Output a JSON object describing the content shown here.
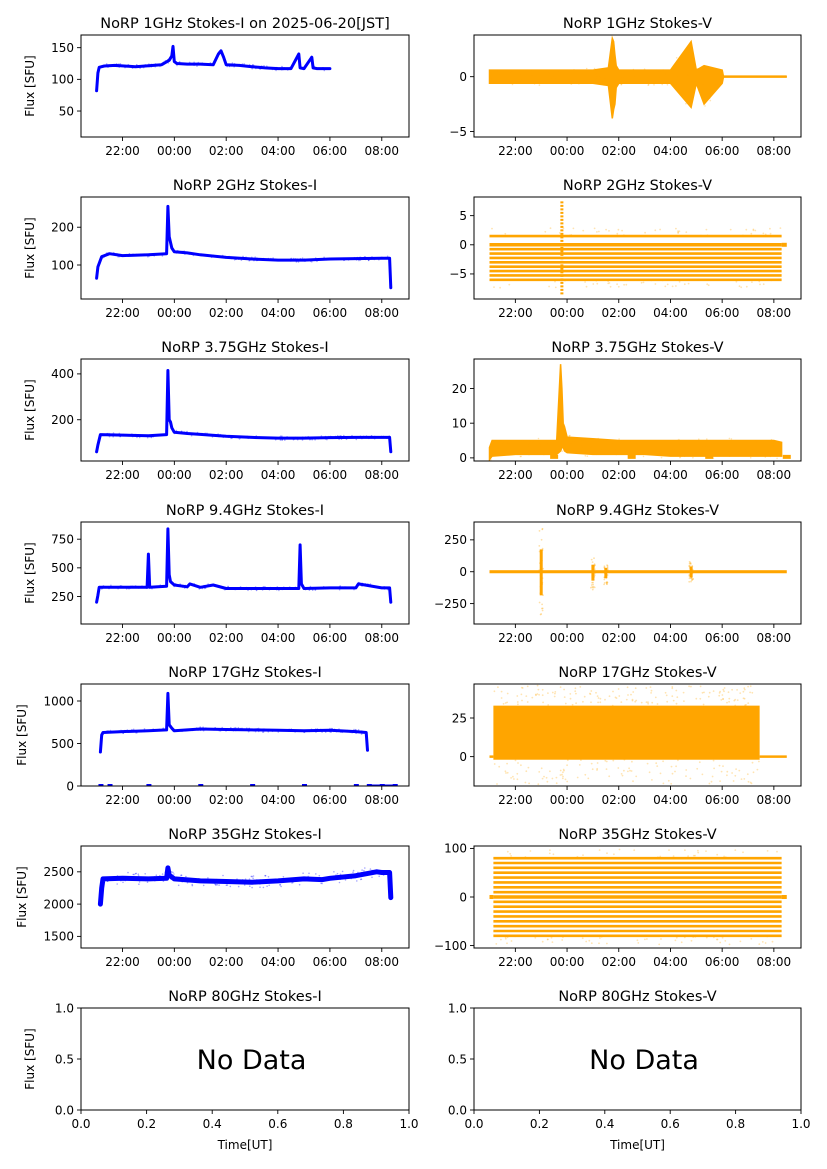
{
  "figure": {
    "date_label": "2025-06-20[JST]",
    "colors": {
      "stokes_i": "#0000ff",
      "stokes_v": "#ffa500",
      "frame": "#000000"
    }
  },
  "chart_data": [
    {
      "type": "scatter",
      "panel": "1GHz-I",
      "title": "NoRP 1GHz Stokes-I on 2025-06-20[JST]",
      "xlabel": "",
      "ylabel": "Flux [SFU]",
      "x_unit": "hours since 00:00 UT (negative = previous day)",
      "xlim": [
        -3.6,
        9.05
      ],
      "ylim": [
        9,
        170
      ],
      "xticks": [
        "22:00",
        "00:00",
        "02:00",
        "04:00",
        "06:00",
        "08:00"
      ],
      "yticks": [
        50,
        100,
        150
      ],
      "color": "#0000ff",
      "series": [
        {
          "name": "Stokes-I",
          "x": [
            -3.0,
            -2.95,
            -2.9,
            -2.7,
            -2.3,
            -1.5,
            -0.5,
            -0.2,
            -0.1,
            -0.05,
            0.0,
            0.1,
            0.5,
            1.0,
            1.5,
            1.7,
            1.8,
            1.9,
            2.0,
            2.5,
            3.0,
            3.5,
            4.0,
            4.5,
            4.8,
            4.85,
            5.0,
            5.3,
            5.35,
            5.5,
            6.0
          ],
          "y": [
            82,
            110,
            119,
            121,
            122,
            120,
            123,
            130,
            137,
            152,
            128,
            125,
            124,
            124,
            123,
            140,
            145,
            135,
            123,
            122,
            120,
            118,
            117,
            117,
            140,
            118,
            117,
            135,
            118,
            117,
            117
          ]
        }
      ]
    },
    {
      "type": "scatter",
      "panel": "1GHz-V",
      "title": "NoRP 1GHz Stokes-V",
      "xlabel": "",
      "ylabel": "",
      "xlim": [
        -3.6,
        9.05
      ],
      "ylim": [
        -5.5,
        3.8
      ],
      "xticks": [
        "22:00",
        "00:00",
        "02:00",
        "04:00",
        "06:00",
        "08:00"
      ],
      "yticks": [
        -5,
        0
      ],
      "color": "#ffa500",
      "series": [
        {
          "name": "Stokes-V",
          "x": [
            -3.0,
            -2.0,
            -1.0,
            0.0,
            1.0,
            1.6,
            1.75,
            1.8,
            1.85,
            1.9,
            2.0,
            3.0,
            4.0,
            4.8,
            5.0,
            5.3,
            6.0,
            6.05,
            7.0,
            8.0,
            8.5
          ],
          "y_band": [
            [
              -0.6,
              0.6
            ],
            [
              -0.6,
              0.6
            ],
            [
              -0.6,
              0.6
            ],
            [
              -0.6,
              0.6
            ],
            [
              -0.6,
              0.6
            ],
            [
              -0.8,
              0.8
            ],
            [
              -3.8,
              3.5
            ],
            [
              -3.0,
              3.2
            ],
            [
              -2.5,
              2.0
            ],
            [
              -1.0,
              1.0
            ],
            [
              -0.6,
              0.6
            ],
            [
              -0.6,
              0.6
            ],
            [
              -0.6,
              0.6
            ],
            [
              -2.8,
              3.2
            ],
            [
              -0.6,
              0.6
            ],
            [
              -2.5,
              1.0
            ],
            [
              -0.6,
              0.6
            ],
            [
              0,
              0
            ],
            [
              0,
              0
            ],
            [
              0,
              0
            ],
            [
              0,
              0
            ]
          ]
        }
      ]
    },
    {
      "type": "scatter",
      "panel": "2GHz-I",
      "title": "NoRP 2GHz Stokes-I",
      "xlabel": "",
      "ylabel": "Flux [SFU]",
      "xlim": [
        -3.6,
        9.05
      ],
      "ylim": [
        10,
        280
      ],
      "xticks": [
        "22:00",
        "00:00",
        "02:00",
        "04:00",
        "06:00",
        "08:00"
      ],
      "yticks": [
        100,
        200
      ],
      "color": "#0000ff",
      "series": [
        {
          "name": "Stokes-I",
          "x": [
            -3.0,
            -2.95,
            -2.8,
            -2.5,
            -2.0,
            -1.0,
            -0.3,
            -0.25,
            -0.2,
            -0.15,
            -0.1,
            0.0,
            0.5,
            1.0,
            2.0,
            3.0,
            4.0,
            5.0,
            6.0,
            7.0,
            8.0,
            8.3,
            8.35
          ],
          "y": [
            65,
            95,
            122,
            130,
            125,
            127,
            130,
            255,
            175,
            160,
            145,
            135,
            132,
            127,
            120,
            116,
            113,
            113,
            116,
            117,
            118,
            118,
            40
          ]
        }
      ]
    },
    {
      "type": "scatter",
      "panel": "2GHz-V",
      "title": "NoRP 2GHz Stokes-V",
      "xlabel": "",
      "ylabel": "",
      "xlim": [
        -3.6,
        9.05
      ],
      "ylim": [
        -9.3,
        8.2
      ],
      "xticks": [
        "22:00",
        "00:00",
        "02:00",
        "04:00",
        "06:00",
        "08:00"
      ],
      "yticks": [
        -5,
        0,
        5
      ],
      "color": "#ffa500",
      "series": [
        {
          "name": "Stokes-V",
          "quantized_levels": [
            1.5,
            0,
            -0.75,
            -1.5,
            -2.25,
            -3,
            -3.75,
            -4.5,
            -5.25,
            -6
          ],
          "x_range": [
            -3.0,
            8.3
          ],
          "spike": {
            "x": -0.2,
            "y_range": [
              -8.5,
              7.5
            ]
          },
          "tail": {
            "x_range": [
              8.3,
              8.5
            ],
            "y": 0
          }
        }
      ]
    },
    {
      "type": "scatter",
      "panel": "3.75GHz-I",
      "title": "NoRP 3.75GHz Stokes-I",
      "xlabel": "",
      "ylabel": "Flux [SFU]",
      "xlim": [
        -3.6,
        9.05
      ],
      "ylim": [
        20,
        465
      ],
      "xticks": [
        "22:00",
        "00:00",
        "02:00",
        "04:00",
        "06:00",
        "08:00"
      ],
      "yticks": [
        200,
        400
      ],
      "color": "#0000ff",
      "series": [
        {
          "name": "Stokes-I",
          "x": [
            -3.0,
            -2.95,
            -2.85,
            -2.0,
            -1.0,
            -0.3,
            -0.25,
            -0.2,
            -0.15,
            -0.1,
            0.0,
            0.5,
            1.0,
            2.0,
            3.0,
            4.0,
            5.0,
            6.0,
            7.0,
            8.0,
            8.3,
            8.35
          ],
          "y": [
            60,
            90,
            135,
            133,
            130,
            135,
            415,
            200,
            190,
            165,
            145,
            140,
            136,
            128,
            123,
            120,
            120,
            122,
            123,
            123,
            123,
            60
          ]
        }
      ]
    },
    {
      "type": "scatter",
      "panel": "3.75GHz-V",
      "title": "NoRP 3.75GHz Stokes-V",
      "xlabel": "",
      "ylabel": "",
      "xlim": [
        -3.6,
        9.05
      ],
      "ylim": [
        -0.9,
        28.5
      ],
      "xticks": [
        "22:00",
        "00:00",
        "02:00",
        "04:00",
        "06:00",
        "08:00"
      ],
      "yticks": [
        0,
        10,
        20
      ],
      "color": "#ffa500",
      "series": [
        {
          "name": "Stokes-V",
          "x": [
            -3.0,
            -2.9,
            -2.0,
            -1.0,
            -0.4,
            -0.25,
            -0.2,
            -0.15,
            -0.1,
            0.0,
            1.0,
            2.0,
            3.0,
            4.0,
            5.0,
            6.0,
            7.0,
            8.0,
            8.3
          ],
          "y_band": [
            [
              -0.5,
              3
            ],
            [
              0.5,
              5
            ],
            [
              1,
              5
            ],
            [
              1,
              5
            ],
            [
              1,
              5
            ],
            [
              2,
              27
            ],
            [
              3,
              20
            ],
            [
              3,
              10
            ],
            [
              2,
              9
            ],
            [
              1.5,
              6
            ],
            [
              1,
              5.5
            ],
            [
              1,
              5
            ],
            [
              1,
              5
            ],
            [
              0.5,
              5
            ],
            [
              0.5,
              5
            ],
            [
              0.5,
              5
            ],
            [
              0.5,
              5
            ],
            [
              0.5,
              5
            ],
            [
              0.5,
              4.5
            ]
          ],
          "zero_marks_x": [
            -0.5,
            2.5,
            5.5,
            8.5
          ]
        }
      ]
    },
    {
      "type": "scatter",
      "panel": "9.4GHz-I",
      "title": "NoRP 9.4GHz Stokes-I",
      "xlabel": "",
      "ylabel": "Flux [SFU]",
      "xlim": [
        -3.6,
        9.05
      ],
      "ylim": [
        10,
        900
      ],
      "xticks": [
        "22:00",
        "00:00",
        "02:00",
        "04:00",
        "06:00",
        "08:00"
      ],
      "yticks": [
        250,
        500,
        750
      ],
      "color": "#0000ff",
      "series": [
        {
          "name": "Stokes-I",
          "x": [
            -3.0,
            -2.95,
            -2.9,
            -2.0,
            -1.05,
            -1.0,
            -0.95,
            -0.3,
            -0.25,
            -0.2,
            -0.15,
            0.0,
            0.5,
            0.6,
            1.0,
            1.5,
            2.0,
            3.0,
            4.0,
            4.8,
            4.85,
            4.9,
            5.0,
            6.0,
            7.0,
            7.1,
            8.0,
            8.3,
            8.35
          ],
          "y": [
            200,
            260,
            330,
            330,
            330,
            620,
            330,
            340,
            840,
            440,
            380,
            350,
            335,
            360,
            330,
            350,
            320,
            320,
            320,
            320,
            700,
            360,
            320,
            325,
            325,
            360,
            325,
            325,
            200
          ]
        }
      ]
    },
    {
      "type": "scatter",
      "panel": "9.4GHz-V",
      "title": "NoRP 9.4GHz Stokes-V",
      "xlabel": "",
      "ylabel": "",
      "xlim": [
        -3.6,
        9.05
      ],
      "ylim": [
        -410,
        390
      ],
      "xticks": [
        "22:00",
        "00:00",
        "02:00",
        "04:00",
        "06:00",
        "08:00"
      ],
      "yticks": [
        -250,
        0,
        250
      ],
      "color": "#ffa500",
      "series": [
        {
          "name": "Stokes-V",
          "x_range": [
            -3.0,
            8.5
          ],
          "band": [
            -12,
            12
          ],
          "bursts": [
            {
              "x": -1.0,
              "y_range": [
                -370,
                350
              ]
            },
            {
              "x": 1.0,
              "y_range": [
                -140,
                110
              ]
            },
            {
              "x": 1.5,
              "y_range": [
                -100,
                60
              ]
            },
            {
              "x": 4.8,
              "y_range": [
                -90,
                80
              ]
            }
          ]
        }
      ]
    },
    {
      "type": "scatter",
      "panel": "17GHz-I",
      "title": "NoRP 17GHz Stokes-I",
      "xlabel": "",
      "ylabel": "Flux [SFU]",
      "xlim": [
        -3.6,
        9.05
      ],
      "ylim": [
        0,
        1200
      ],
      "xticks": [
        "22:00",
        "00:00",
        "02:00",
        "04:00",
        "06:00",
        "08:00"
      ],
      "yticks": [
        0,
        500,
        1000
      ],
      "color": "#0000ff",
      "series": [
        {
          "name": "Stokes-I",
          "x": [
            -2.85,
            -2.8,
            -2.75,
            -2.0,
            -1.0,
            -0.3,
            -0.25,
            -0.2,
            -0.1,
            0.0,
            1.0,
            2.0,
            3.0,
            4.0,
            5.0,
            6.0,
            7.0,
            7.4,
            7.45
          ],
          "y": [
            400,
            600,
            630,
            640,
            650,
            660,
            1090,
            720,
            680,
            650,
            670,
            665,
            660,
            655,
            650,
            655,
            640,
            630,
            420
          ]
        }
      ],
      "zero_marks_x": [
        -2.85,
        -2.5,
        -1.0,
        1.0,
        3.0,
        5.0,
        7.0,
        7.5,
        8.0,
        8.5
      ]
    },
    {
      "type": "scatter",
      "panel": "17GHz-V",
      "title": "NoRP 17GHz Stokes-V",
      "xlabel": "",
      "ylabel": "",
      "xlim": [
        -3.6,
        9.05
      ],
      "ylim": [
        -19,
        47
      ],
      "xticks": [
        "22:00",
        "00:00",
        "02:00",
        "04:00",
        "06:00",
        "08:00"
      ],
      "yticks": [
        0,
        25
      ],
      "color": "#ffa500",
      "series": [
        {
          "name": "Stokes-V",
          "x_range": [
            -2.85,
            7.45
          ],
          "band": [
            -2,
            33
          ],
          "scatter_range": [
            -18,
            46
          ],
          "tail": {
            "x_range": [
              7.45,
              8.5
            ],
            "y": 0
          },
          "lead": {
            "x_range": [
              -3.0,
              -2.85
            ],
            "y": 0
          }
        }
      ]
    },
    {
      "type": "scatter",
      "panel": "35GHz-I",
      "title": "NoRP 35GHz Stokes-I",
      "xlabel": "",
      "ylabel": "Flux [SFU]",
      "xlim": [
        -3.6,
        9.05
      ],
      "ylim": [
        1320,
        2900
      ],
      "xticks": [
        "22:00",
        "00:00",
        "02:00",
        "04:00",
        "06:00",
        "08:00"
      ],
      "yticks": [
        1500,
        2000,
        2500
      ],
      "color": "#0000ff",
      "series": [
        {
          "name": "Stokes-I",
          "x": [
            -2.85,
            -2.8,
            -2.75,
            -2.0,
            -1.0,
            -0.3,
            -0.25,
            -0.2,
            0.0,
            1.0,
            2.0,
            3.0,
            4.0,
            5.0,
            5.7,
            6.0,
            7.0,
            7.8,
            8.0,
            8.3,
            8.35
          ],
          "y": [
            2000,
            2250,
            2390,
            2400,
            2390,
            2400,
            2560,
            2450,
            2390,
            2360,
            2350,
            2340,
            2360,
            2390,
            2380,
            2400,
            2440,
            2500,
            2490,
            2490,
            2100
          ]
        }
      ],
      "band_halfwidth": [
        [
          -2.75,
          30
        ],
        [
          -0.3,
          30
        ],
        [
          0,
          60
        ],
        [
          2.0,
          80
        ],
        [
          4.0,
          70
        ],
        [
          5.7,
          130
        ],
        [
          7.0,
          80
        ],
        [
          8.3,
          90
        ]
      ]
    },
    {
      "type": "scatter",
      "panel": "35GHz-V",
      "title": "NoRP 35GHz Stokes-V",
      "xlabel": "",
      "ylabel": "",
      "xlim": [
        -3.6,
        9.05
      ],
      "ylim": [
        -105,
        105
      ],
      "xticks": [
        "22:00",
        "00:00",
        "02:00",
        "04:00",
        "06:00",
        "08:00"
      ],
      "yticks": [
        -100,
        0,
        100
      ],
      "color": "#ffa500",
      "series": [
        {
          "name": "Stokes-V",
          "quantized_levels": [
            80,
            70,
            60,
            50,
            40,
            30,
            20,
            10,
            0,
            -10,
            -20,
            -30,
            -40,
            -50,
            -60,
            -70,
            -80
          ],
          "x_range": [
            -2.85,
            8.3
          ],
          "scatter_range": [
            -98,
            98
          ],
          "lead": {
            "x_range": [
              -3.0,
              -2.85
            ],
            "y": 0
          },
          "tail": {
            "x_range": [
              8.3,
              8.5
            ],
            "y": 0
          }
        }
      ]
    },
    {
      "type": "scatter",
      "panel": "80GHz-I",
      "title": "NoRP 80GHz Stokes-I",
      "xlabel": "Time[UT]",
      "ylabel": "Flux [SFU]",
      "xlim": [
        0,
        1
      ],
      "ylim": [
        0,
        1
      ],
      "xticks": [
        "0.0",
        "0.2",
        "0.4",
        "0.6",
        "0.8",
        "1.0"
      ],
      "yticks": [
        "0.0",
        "0.5",
        "1.0"
      ],
      "annotation": "No Data",
      "series": []
    },
    {
      "type": "scatter",
      "panel": "80GHz-V",
      "title": "NoRP 80GHz Stokes-V",
      "xlabel": "Time[UT]",
      "ylabel": "",
      "xlim": [
        0,
        1
      ],
      "ylim": [
        0,
        1
      ],
      "xticks": [
        "0.0",
        "0.2",
        "0.4",
        "0.6",
        "0.8",
        "1.0"
      ],
      "yticks": [
        "0.0",
        "0.5",
        "1.0"
      ],
      "annotation": "No Data",
      "series": []
    }
  ]
}
